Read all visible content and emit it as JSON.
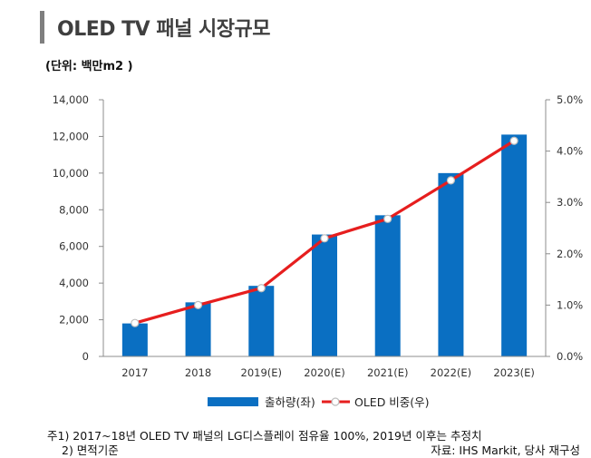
{
  "title": "OLED TV 패널 시장규모",
  "unit_label": "(단위: 백만m2 )",
  "chart_data": {
    "type": "bar",
    "categories": [
      "2017",
      "2018",
      "2019(E)",
      "2020(E)",
      "2021(E)",
      "2022(E)",
      "2023(E)"
    ],
    "series": [
      {
        "name": "출하량(좌)",
        "type": "bar",
        "axis": "left",
        "color": "#0a6fc2",
        "values": [
          1800,
          2950,
          3850,
          6650,
          7700,
          10000,
          12100
        ]
      },
      {
        "name": "OLED 비중(우)",
        "type": "line",
        "axis": "right",
        "color": "#e61e1e",
        "values": [
          0.65,
          1.0,
          1.33,
          2.3,
          2.68,
          3.43,
          4.2
        ]
      }
    ],
    "y_left": {
      "min": 0,
      "max": 14000,
      "ticks": [
        "0",
        "2,000",
        "4,000",
        "6,000",
        "8,000",
        "10,000",
        "12,000",
        "14,000"
      ]
    },
    "y_right": {
      "min": 0,
      "max": 5,
      "ticks": [
        "0.0%",
        "1.0%",
        "2.0%",
        "3.0%",
        "4.0%",
        "5.0%"
      ]
    },
    "legend_position": "bottom",
    "grid": false
  },
  "notes": {
    "note1": "주1) 2017~18년 OLED TV 패널의 LG디스플레이 점유율 100%, 2019년 이후는 추정치",
    "note2": "2) 면적기준",
    "source": "자료: IHS Markit, 당사 재구성"
  }
}
